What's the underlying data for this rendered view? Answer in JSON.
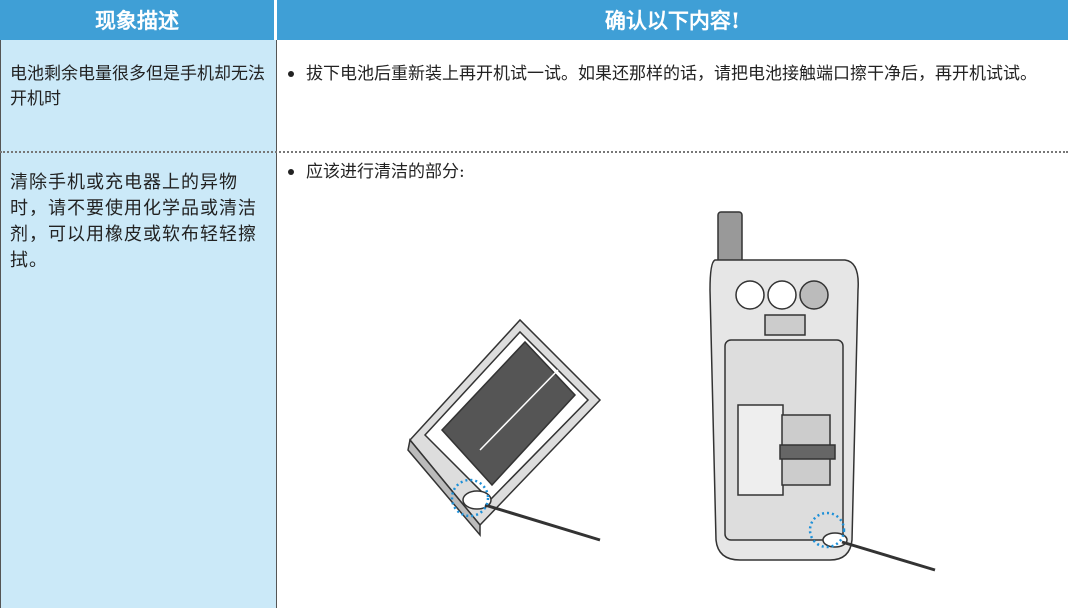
{
  "table": {
    "header": [
      "现象描述",
      "确认以下内容!"
    ],
    "rows": [
      [
        "电池剩余电量很多但是手机却无法开机时",
        "拔下电池后重新装上再开机试一试。如果还那样的话，请把电池接触端口擦干净后，再开机试试。"
      ],
      [
        "清除手机或充电器上的异物时，请不要使用化学品或清洁剂，可以用橡皮或软布轻轻擦拭。",
        "应该进行清洁的部分:"
      ]
    ]
  }
}
